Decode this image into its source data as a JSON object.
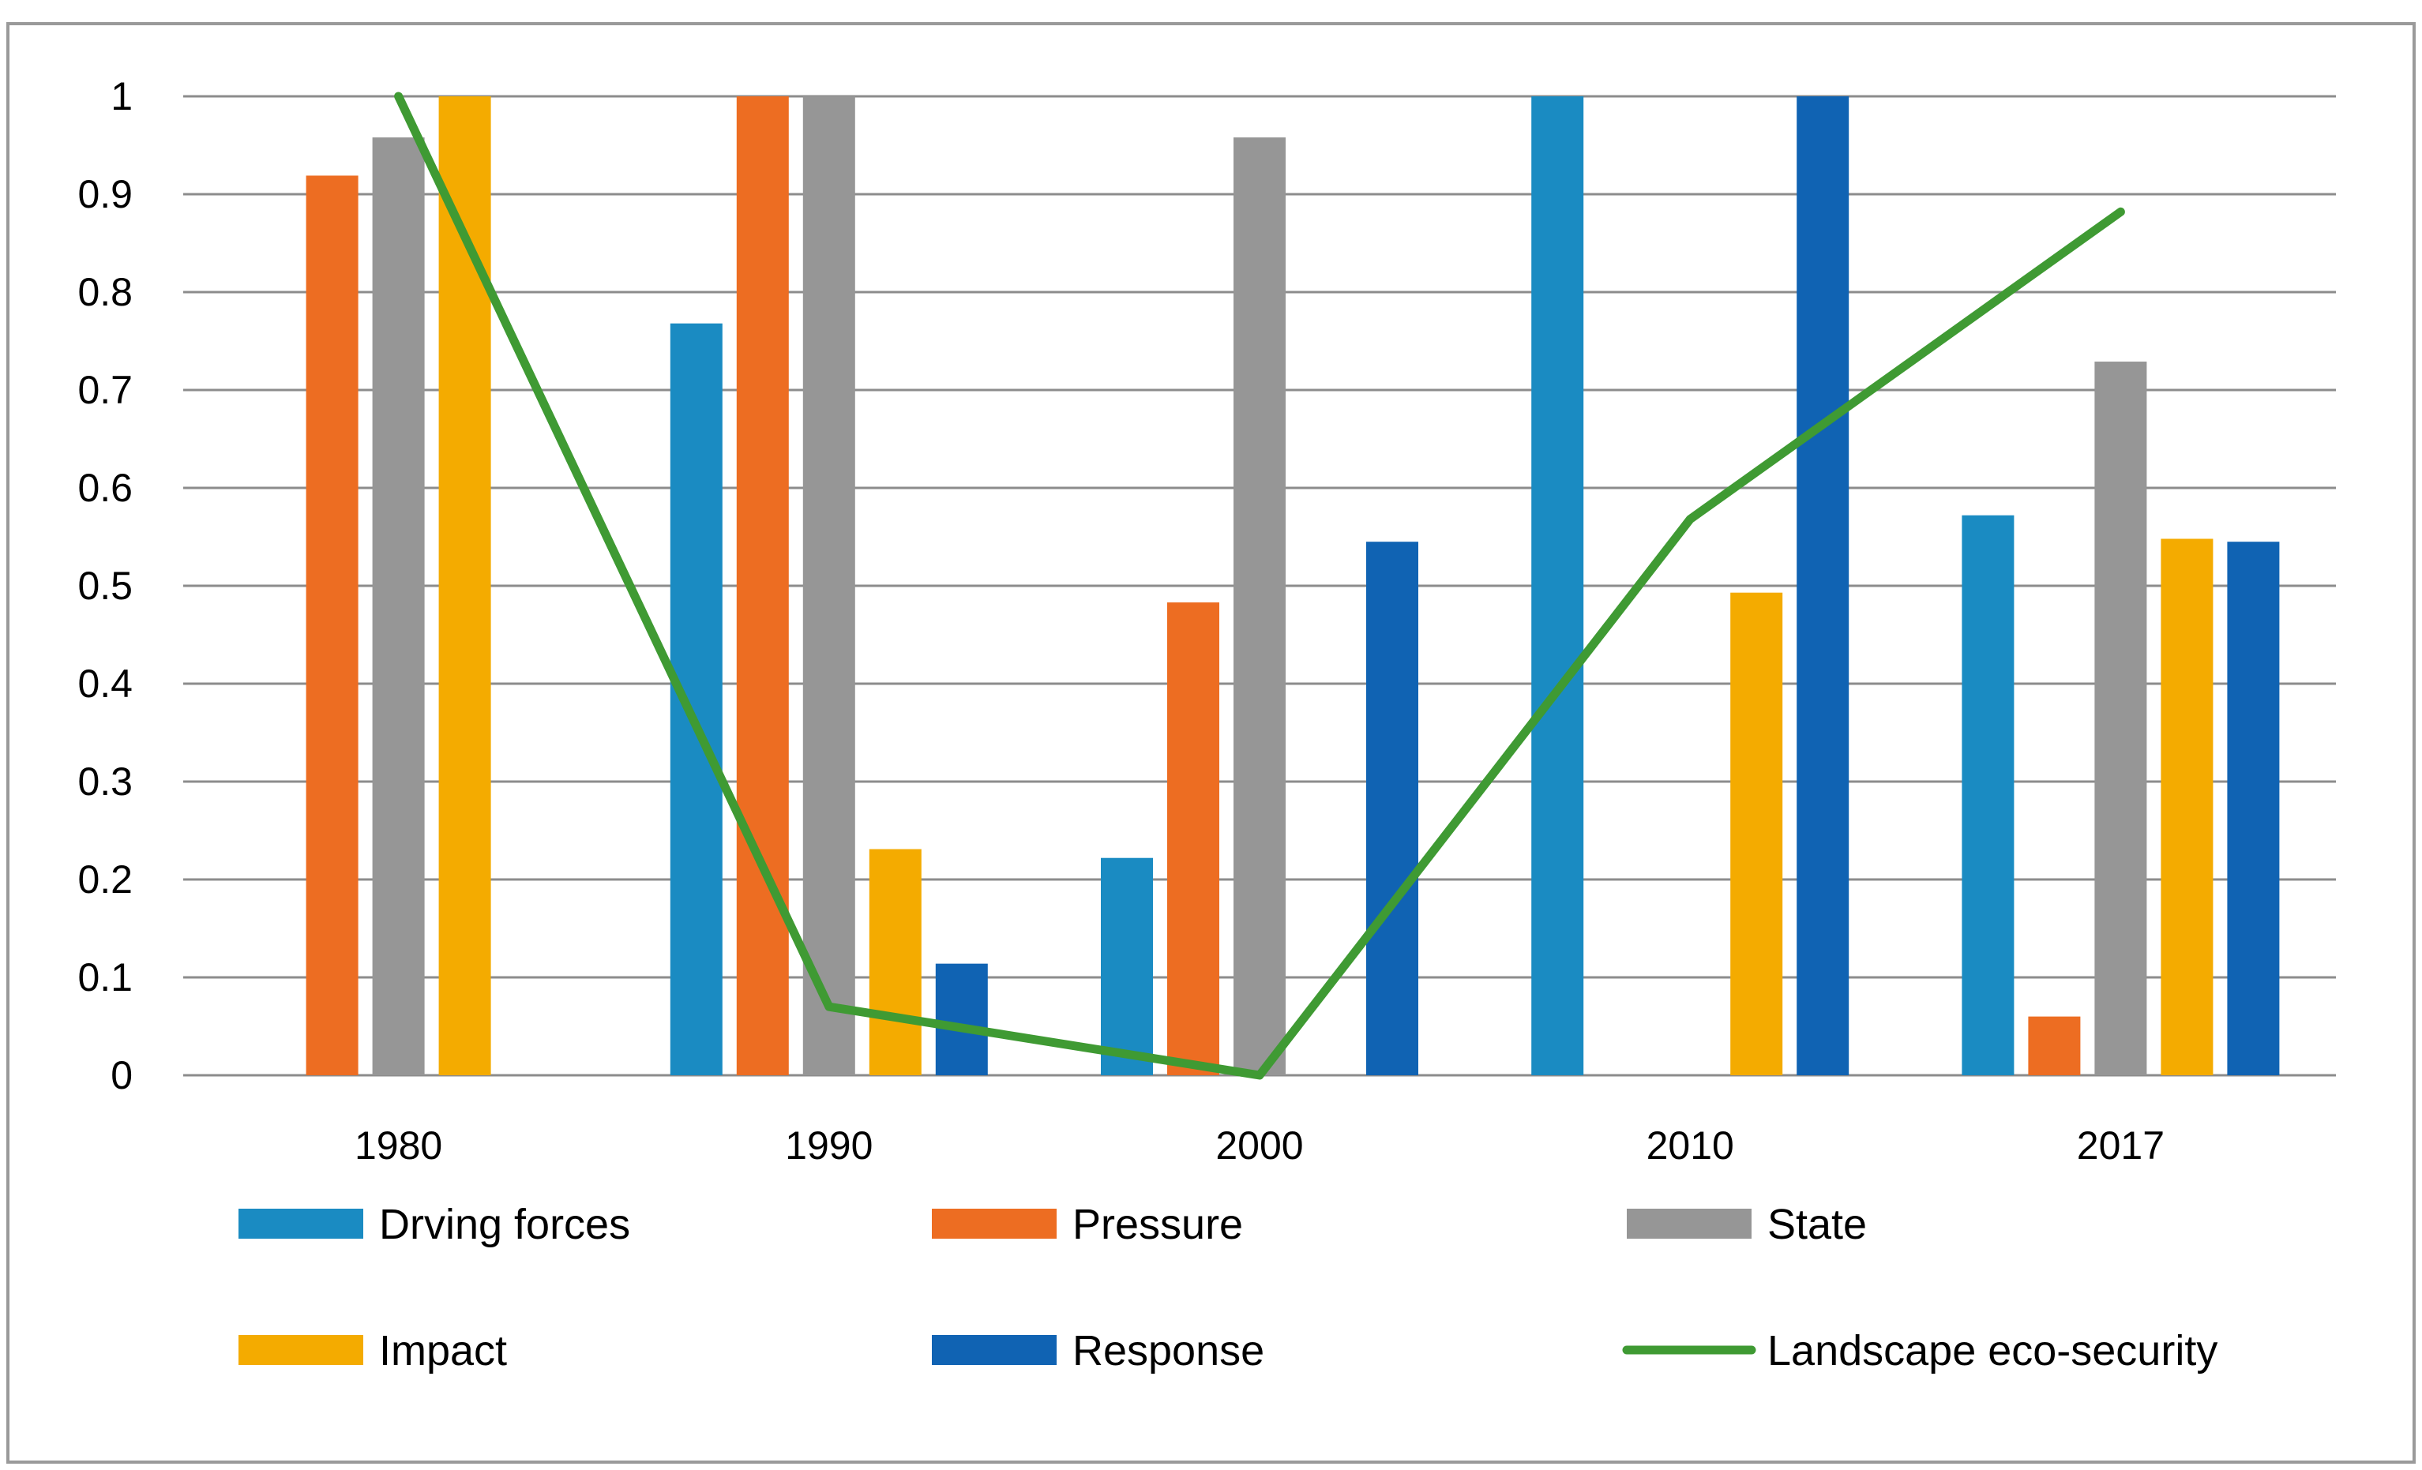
{
  "chart_data": {
    "type": "bar",
    "title": "",
    "xlabel": "",
    "ylabel": "",
    "categories": [
      "1980",
      "1990",
      "2000",
      "2010",
      "2017"
    ],
    "ylim": [
      0,
      1
    ],
    "yticks": [
      "0",
      "0.1",
      "0.2",
      "0.3",
      "0.4",
      "0.5",
      "0.6",
      "0.7",
      "0.8",
      "0.9",
      "1"
    ],
    "grid": true,
    "series": [
      {
        "name": "Drving forces",
        "kind": "bar",
        "color": "#1a8bc2",
        "values": [
          0,
          0.768,
          0.222,
          1.0,
          0.572
        ]
      },
      {
        "name": "Pressure",
        "kind": "bar",
        "color": "#ed6d22",
        "values": [
          0.919,
          1.0,
          0.483,
          0,
          0.06
        ]
      },
      {
        "name": "State",
        "kind": "bar",
        "color": "#969696",
        "values": [
          0.958,
          1.0,
          0.958,
          0,
          0.729
        ]
      },
      {
        "name": "Impact",
        "kind": "bar",
        "color": "#f4ab00",
        "values": [
          1.0,
          0.231,
          0,
          0.493,
          0.548
        ]
      },
      {
        "name": "Response",
        "kind": "bar",
        "color": "#1063b3",
        "values": [
          0,
          0.114,
          0.545,
          1.0,
          0.545
        ]
      },
      {
        "name": "Landscape eco-security",
        "kind": "line",
        "color": "#3f9a33",
        "values": [
          1.0,
          0.07,
          0.0,
          0.568,
          0.882
        ]
      }
    ],
    "legend": {
      "placement": "bottom",
      "items": [
        "Drving forces",
        "Pressure",
        "State",
        "Impact",
        "Response",
        "Landscape eco-security"
      ]
    }
  }
}
